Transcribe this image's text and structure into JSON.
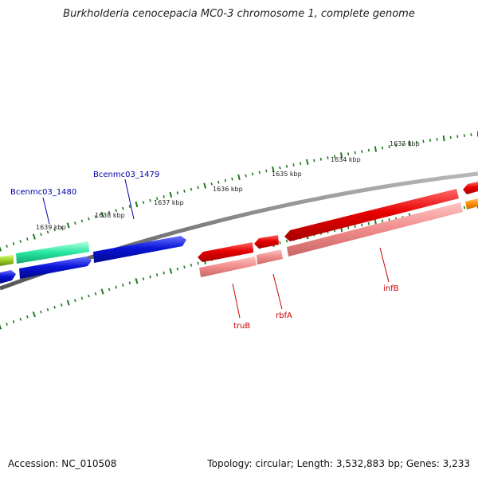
{
  "title": "Burkholderia cenocepacia MC0-3 chromosome 1, complete genome",
  "footer": {
    "accession": "Accession: NC_010508",
    "topology": "Topology: circular; Length: 3,532,883 bp; Genes: 3,233"
  },
  "ticks": [
    "1633 kbp",
    "1634 kbp",
    "1635 kbp",
    "1636 kbp",
    "1637 kbp",
    "1638 kbp",
    "1639 kbp"
  ],
  "genes": [
    {
      "label": "Bcenmc03_1480",
      "color": "#0000aa"
    },
    {
      "label": "Bcenmc03_1479",
      "color": "#0000aa"
    },
    {
      "label": "truB",
      "color": "#cc0000"
    },
    {
      "label": "rbfA",
      "color": "#cc0000"
    },
    {
      "label": "infB",
      "color": "#cc0000"
    }
  ],
  "colors": {
    "backbone": "#7a7a7a",
    "tick": "#1d7a1d",
    "gene_red": "#e60000",
    "gene_red_light": "#f08b8b",
    "gene_blue": "#0a14d8",
    "gene_cyan": "#27e6a0",
    "gene_yellowgreen": "#9ccc22",
    "gene_orange": "#ff8c00"
  }
}
